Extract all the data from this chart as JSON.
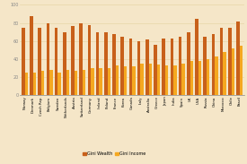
{
  "countries": [
    "Norway",
    "Denmark",
    "Czech Rep.",
    "Belgium",
    "Sweden",
    "Netherlands",
    "Austria",
    "Switzerland",
    "Germany",
    "Ireland",
    "Poland",
    "France",
    "Korea",
    "Canada",
    "Italy",
    "Australia",
    "Greece",
    "Japan",
    "India",
    "Spain",
    "UK",
    "USA",
    "Russia",
    "China",
    "Morocco",
    "Chile",
    "Brazil"
  ],
  "gini_wealth": [
    75,
    88,
    75,
    80,
    75,
    70,
    77,
    80,
    78,
    70,
    70,
    68,
    65,
    63,
    60,
    62,
    56,
    63,
    63,
    65,
    70,
    85,
    65,
    68,
    75,
    75,
    82
  ],
  "gini_income": [
    25,
    25,
    27,
    28,
    25,
    28,
    27,
    28,
    30,
    30,
    30,
    33,
    32,
    32,
    35,
    35,
    34,
    33,
    33,
    35,
    38,
    38,
    40,
    43,
    48,
    52,
    55
  ],
  "bar_color_wealth": "#c8601a",
  "bar_color_income": "#f5a820",
  "background_color": "#f5e6c8",
  "ylabel_ticks": [
    0,
    20,
    40,
    60,
    80,
    100
  ],
  "legend_wealth": "Gini Wealth",
  "legend_income": "Gini Income",
  "grid_color": "#e8d5a8"
}
